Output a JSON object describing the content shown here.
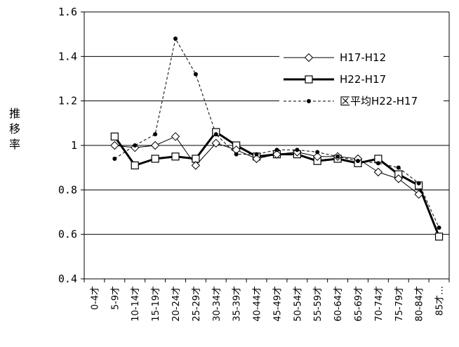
{
  "chart_data": {
    "type": "line",
    "title": "",
    "xlabel": "",
    "ylabel": "推移率",
    "ylim": [
      0.4,
      1.6
    ],
    "yticks": [
      "0.4",
      "0.6",
      "0.8",
      "1",
      "1.2",
      "1.4",
      "1.6"
    ],
    "grid": "horizontal",
    "legend_position": "top-right",
    "categories": [
      "0-4才",
      "5-9才",
      "10-14才",
      "15-19才",
      "20-24才",
      "25-29才",
      "30-34才",
      "35-39才",
      "40-44才",
      "45-49才",
      "50-54才",
      "55-59才",
      "60-64才",
      "65-69才",
      "70-74才",
      "75-79才",
      "80-84才",
      "85才…"
    ],
    "series": [
      {
        "name": "H17-H12",
        "marker": "diamond",
        "line_style": "solid-thin",
        "color": "#000000",
        "values": [
          null,
          1.0,
          0.99,
          1.0,
          1.04,
          0.91,
          1.01,
          0.98,
          0.94,
          0.96,
          0.97,
          0.95,
          0.95,
          0.94,
          0.88,
          0.85,
          0.78,
          null
        ]
      },
      {
        "name": "H22-H17",
        "marker": "square",
        "line_style": "solid-thick",
        "color": "#000000",
        "values": [
          null,
          1.04,
          0.91,
          0.94,
          0.95,
          0.94,
          1.06,
          1.0,
          0.95,
          0.96,
          0.96,
          0.93,
          0.94,
          0.92,
          0.94,
          0.87,
          0.82,
          0.59
        ]
      },
      {
        "name": "区平均H22-H17",
        "marker": "dot",
        "line_style": "dashed",
        "color": "#000000",
        "values": [
          null,
          0.94,
          1.0,
          1.05,
          1.48,
          1.32,
          1.05,
          0.96,
          0.96,
          0.98,
          0.98,
          0.97,
          0.95,
          0.93,
          0.92,
          0.9,
          0.83,
          0.63
        ]
      }
    ]
  }
}
